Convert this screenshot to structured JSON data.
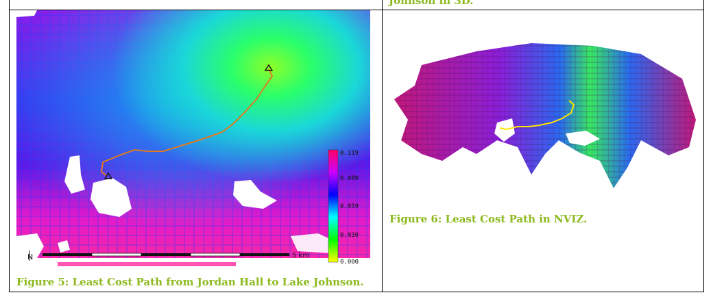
{
  "top_fragment": "Johnson in 3D.",
  "figure5": {
    "caption": "Figure 5: Least Cost Path from Jordan Hall to Lake Johnson.",
    "legend_ticks": [
      "0.119",
      "0.089",
      "0.059",
      "0.030",
      "0.000"
    ],
    "scalebar_label": "5 km",
    "north_label": "N",
    "colors": {
      "path": "#e07a1f",
      "low": "#ffff00",
      "high": "#ff0066"
    }
  },
  "figure6": {
    "caption": "Figure 6: Least Cost Path in NVIZ.",
    "colors": {
      "path": "#ffe400",
      "base": "#c2187a"
    }
  }
}
